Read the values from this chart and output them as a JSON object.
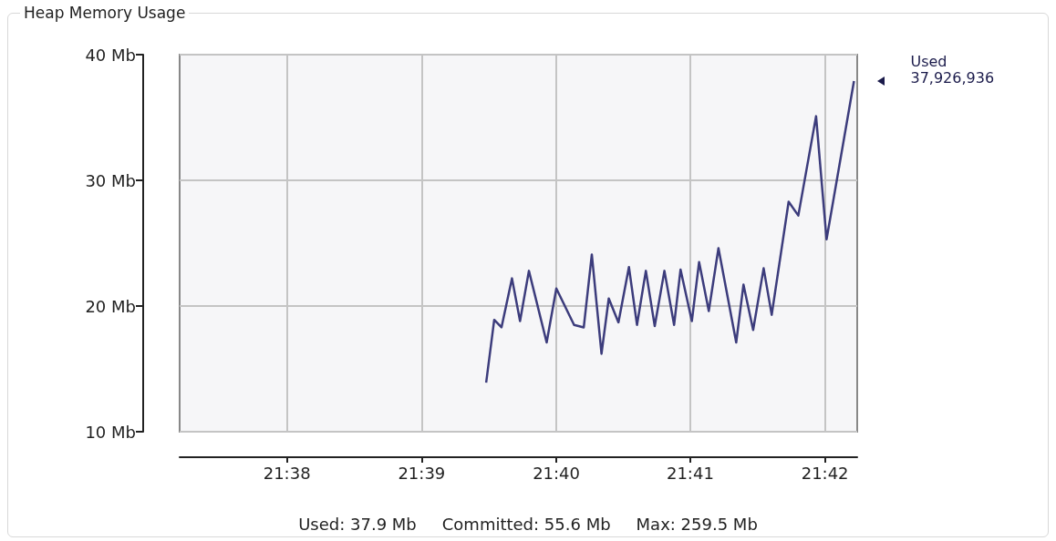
{
  "chart_data": {
    "type": "line",
    "title": "Heap Memory Usage",
    "x": [
      21.658,
      21.659,
      21.6599,
      21.6612,
      21.6622,
      21.6633,
      21.6655,
      21.6667,
      21.6689,
      21.6701,
      21.6711,
      21.6723,
      21.6732,
      21.6744,
      21.6757,
      21.6767,
      21.6778,
      21.6789,
      21.6801,
      21.6813,
      21.6821,
      21.6835,
      21.6844,
      21.6856,
      21.6868,
      21.689,
      21.6899,
      21.6911,
      21.6924,
      21.6934,
      21.6955,
      21.6967,
      21.6989,
      21.7002,
      21.7036
    ],
    "series": [
      {
        "color": "#3c3c7c",
        "values": [
          13.9,
          18.9,
          18.3,
          22.2,
          18.8,
          22.8,
          17.1,
          21.4,
          18.5,
          18.3,
          24.1,
          16.2,
          20.6,
          18.7,
          23.1,
          18.5,
          22.8,
          18.4,
          22.8,
          18.5,
          22.9,
          18.8,
          23.5,
          19.6,
          24.6,
          17.1,
          21.7,
          18.1,
          23.0,
          19.3,
          28.3,
          27.2,
          35.1,
          25.3,
          37.9
        ]
      }
    ],
    "xlim": [
      21.62,
      21.704
    ],
    "xticks": [
      {
        "value": 21.6333,
        "label": "21:38"
      },
      {
        "value": 21.65,
        "label": "21:39"
      },
      {
        "value": 21.6667,
        "label": "21:40"
      },
      {
        "value": 21.6833,
        "label": "21:41"
      },
      {
        "value": 21.7,
        "label": "21:42"
      }
    ],
    "ylim": [
      10,
      40
    ],
    "yticks": [
      {
        "value": 10,
        "label": "10 Mb"
      },
      {
        "value": 20,
        "label": "20 Mb"
      },
      {
        "value": 30,
        "label": "30 Mb"
      },
      {
        "value": 40,
        "label": "40 Mb"
      }
    ],
    "grid": true,
    "marker": "none",
    "line_style": "solid",
    "annotations": [
      "Used\n37,926,936",
      "Used: 37.9 Mb",
      "Committed: 55.6 Mb",
      "Max: 259.5 Mb"
    ]
  }
}
